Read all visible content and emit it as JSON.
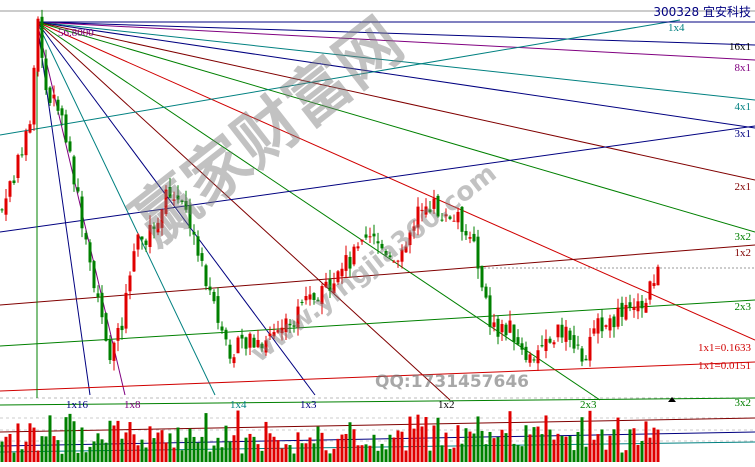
{
  "header": {
    "symbol": "300328",
    "name": "宜安科技"
  },
  "watermark": {
    "site_name": "赢家财富网",
    "url": "www.yingjia360.com",
    "contact": "QQ:1731457646"
  },
  "colors": {
    "up": "#e00000",
    "down": "#008000",
    "navy": "#000080",
    "purple": "#800080",
    "teal": "#008080",
    "maroon": "#800000",
    "green": "#008000",
    "red": "#d00000"
  },
  "chart_data": {
    "type": "candlestick",
    "title": "300328 宜安科技",
    "origin_price_label": "56.8000",
    "close_path": [
      [
        0,
        42.7
      ],
      [
        7,
        48.7
      ],
      [
        9,
        56.8
      ],
      [
        11,
        51.7
      ],
      [
        15,
        49.5
      ],
      [
        18,
        45.0
      ],
      [
        22,
        39.0
      ],
      [
        27,
        32.2
      ],
      [
        30,
        33.7
      ],
      [
        33,
        39.7
      ],
      [
        37,
        41.2
      ],
      [
        42,
        44.2
      ],
      [
        47,
        41.9
      ],
      [
        52,
        36.0
      ],
      [
        57,
        32.2
      ],
      [
        65,
        33.0
      ],
      [
        72,
        34.4
      ],
      [
        82,
        37.4
      ],
      [
        92,
        40.4
      ],
      [
        100,
        39.0
      ],
      [
        105,
        43.5
      ],
      [
        110,
        42.7
      ],
      [
        117,
        41.2
      ],
      [
        120,
        37.4
      ],
      [
        122,
        33.7
      ],
      [
        127,
        33.7
      ],
      [
        132,
        31.8
      ],
      [
        140,
        33.7
      ],
      [
        145,
        31.4
      ],
      [
        150,
        34.4
      ],
      [
        160,
        35.2
      ],
      [
        162,
        36.7
      ],
      [
        164,
        39.0
      ]
    ],
    "gann_labels": {
      "top_right": [
        "1x4",
        "16x1",
        "8x1",
        "4x1",
        "3x1",
        "2x1",
        "3x2",
        "1x2",
        "2x3",
        "1x1=0.1633",
        "1x1=0.0151",
        "3x2"
      ],
      "bottom": [
        "1x16",
        "1x8",
        "1x4",
        "1x3",
        "1x2",
        "2x3"
      ]
    },
    "volume_panel": true,
    "grid": false
  }
}
